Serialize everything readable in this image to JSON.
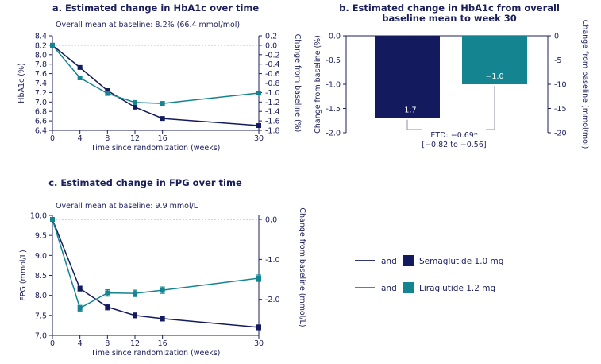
{
  "colors": {
    "semaglutide": "#131a5e",
    "liraglutide": "#138490",
    "axis": "#1b1f5a",
    "ref_line": "#aaaaaa"
  },
  "legend": [
    {
      "connector": "and",
      "label": "Semaglutide 1.0 mg",
      "series": "semaglutide"
    },
    {
      "connector": "and",
      "label": "Liraglutide 1.2 mg",
      "series": "liraglutide"
    }
  ],
  "chart_data": [
    {
      "id": "a",
      "type": "line",
      "title": "a. Estimated change in HbA1c over time",
      "subtitle": "Overall mean at baseline: 8.2% (66.4 mmol/mol)",
      "xlabel": "Time since randomization (weeks)",
      "ylabel": "HbA1c (%)",
      "ylabel2": "Change from baseline (%)",
      "x": [
        0,
        4,
        8,
        12,
        16,
        30
      ],
      "xticks": [
        0,
        4,
        8,
        12,
        16,
        30
      ],
      "ylim": [
        6.4,
        8.4
      ],
      "yticks": [
        "6.4",
        "6.6",
        "6.8",
        "7.0",
        "7.2",
        "7.4",
        "7.6",
        "7.8",
        "8.0",
        "8.2",
        "8.4"
      ],
      "ylim2": [
        -1.8,
        0.2
      ],
      "yticks2": [
        "-1.8",
        "-1.6",
        "-1.4",
        "-1.2",
        "-1.0",
        "-0.8",
        "-0.6",
        "-0.4",
        "-0.2",
        "0.0",
        "0.2"
      ],
      "baseline": 8.2,
      "series": [
        {
          "name": "Semaglutide 1.0 mg",
          "key": "semaglutide",
          "values": [
            8.2,
            7.73,
            7.24,
            6.89,
            6.65,
            6.5
          ]
        },
        {
          "name": "Liraglutide 1.2 mg",
          "key": "liraglutide",
          "values": [
            8.2,
            7.51,
            7.18,
            6.99,
            6.97,
            7.19
          ]
        }
      ]
    },
    {
      "id": "b",
      "type": "bar",
      "title": "b. Estimated change in HbA1c from overall",
      "title2": "baseline mean to week 30",
      "ylabel": "Change from baseline (%)",
      "ylabel2": "Change from baseline (mmol/mol)",
      "ylim": [
        -2.0,
        0.0
      ],
      "yticks": [
        "-2.0",
        "-1.5",
        "-1.0",
        "-0.5",
        "0.0"
      ],
      "ylim2": [
        -20,
        0
      ],
      "yticks2": [
        "-20",
        "-15",
        "-10",
        "-5",
        "0"
      ],
      "categories": [
        "Semaglutide 1.0 mg",
        "Liraglutide 1.2 mg"
      ],
      "values": [
        -1.7,
        -1.0
      ],
      "data_labels": [
        "−1.7",
        "−1.0"
      ],
      "annotation_line1": "ETD: −0.69*",
      "annotation_line2": "[−0.82 to −0.56]"
    },
    {
      "id": "c",
      "type": "line",
      "title": "c. Estimated change in FPG over time",
      "subtitle": "Overall mean at baseline: 9.9 mmol/L",
      "xlabel": "Time since randomization (weeks)",
      "ylabel": "FPG (mmol/L)",
      "ylabel2": "Change from baseline (mmol/L)",
      "x": [
        0,
        4,
        8,
        12,
        16,
        30
      ],
      "xticks": [
        0,
        4,
        8,
        12,
        16,
        30
      ],
      "ylim": [
        7.0,
        10.0
      ],
      "yticks": [
        "7.0",
        "7.5",
        "8.0",
        "8.5",
        "9.0",
        "9.5",
        "10.0"
      ],
      "ylim2": [
        -2.9,
        0.1
      ],
      "yticks2": [
        "-2.0",
        "-1.0",
        "0.0"
      ],
      "baseline": 9.9,
      "series": [
        {
          "name": "Semaglutide 1.0 mg",
          "key": "semaglutide",
          "values": [
            9.9,
            8.17,
            7.71,
            7.5,
            7.42,
            7.2
          ],
          "errors": [
            0,
            0.06,
            0.07,
            0.06,
            0.06,
            0.06
          ]
        },
        {
          "name": "Liraglutide 1.2 mg",
          "key": "liraglutide",
          "values": [
            9.9,
            7.68,
            8.06,
            8.05,
            8.13,
            8.43
          ],
          "errors": [
            0,
            0.07,
            0.08,
            0.08,
            0.08,
            0.08
          ]
        }
      ]
    }
  ]
}
